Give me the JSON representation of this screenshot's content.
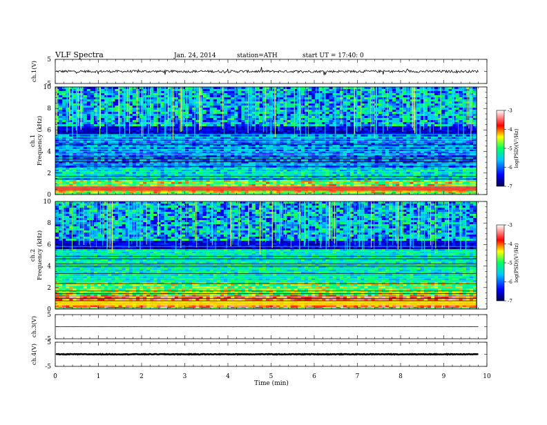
{
  "header": {
    "title": "VLF Spectra",
    "date": "Jan. 24, 2014",
    "station": "station=ATH",
    "start": "start UT =   17:40: 0"
  },
  "chart_data": [
    {
      "type": "line",
      "panel": "ch1-waveform",
      "ylabel": "ch.1(V)",
      "yticks": [
        "5",
        "-5"
      ],
      "ylim": [
        -5,
        5
      ],
      "xlim": [
        0,
        10
      ],
      "baseline": 0,
      "approx_amplitude": 1
    },
    {
      "type": "heatmap",
      "panel": "ch1-spectrogram",
      "ylabel": "ch.1",
      "ylabel2": "Frequency (kHz)",
      "yticks": [
        "10",
        "8",
        "6",
        "4",
        "2",
        "0"
      ],
      "ylim": [
        0,
        10
      ],
      "xlim": [
        0,
        9.8
      ],
      "colorbar": {
        "label": "log(PSD)(V²/Hz)",
        "ticks": [
          "-3",
          "-4",
          "-5",
          "-6",
          "-7"
        ],
        "range": [
          -7,
          -3
        ]
      }
    },
    {
      "type": "heatmap",
      "panel": "ch2-spectrogram",
      "ylabel": "ch.2",
      "ylabel2": "Frequency (kHz)",
      "yticks": [
        "10",
        "8",
        "6",
        "4",
        "2",
        "0"
      ],
      "ylim": [
        0,
        10
      ],
      "xlim": [
        0,
        9.8
      ],
      "colorbar": {
        "label": "log(PSD)(V²/Hz)",
        "ticks": [
          "-3",
          "-4",
          "-5",
          "-6",
          "-7"
        ],
        "range": [
          -7,
          -3
        ]
      }
    },
    {
      "type": "line",
      "panel": "ch3-waveform",
      "ylabel": "ch.3(V)",
      "yticks": [
        "5",
        "-5"
      ],
      "ylim": [
        -5,
        5
      ],
      "xlim": [
        0,
        10
      ],
      "baseline": 0,
      "approx_amplitude": 0.1
    },
    {
      "type": "line",
      "panel": "ch4-waveform",
      "ylabel": "ch.4(V)",
      "yticks": [
        "5",
        "-5"
      ],
      "ylim": [
        -5,
        5
      ],
      "xlim": [
        0,
        10
      ],
      "baseline": 0,
      "approx_amplitude": 0.3
    }
  ],
  "xaxis": {
    "label": "Time (min)",
    "ticks": [
      "0",
      "1",
      "2",
      "3",
      "4",
      "5",
      "6",
      "7",
      "8",
      "9",
      "10"
    ],
    "range": [
      0,
      10
    ]
  },
  "colors": {
    "colormap": [
      "#000066",
      "#0000ff",
      "#00ffff",
      "#00ff00",
      "#ffff00",
      "#ff0000",
      "#ffffff"
    ],
    "line": "#000000"
  }
}
